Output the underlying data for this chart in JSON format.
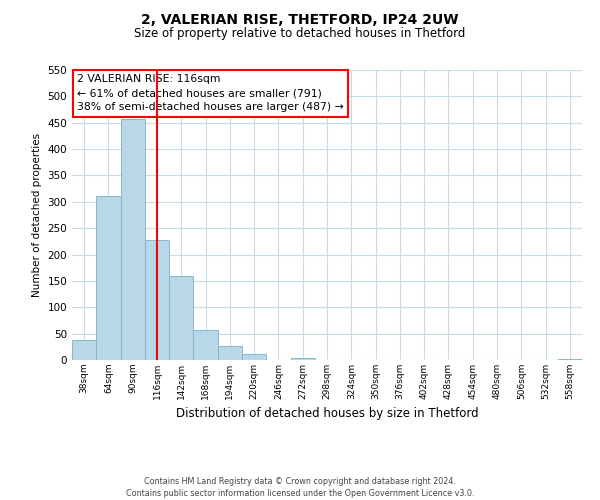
{
  "title": "2, VALERIAN RISE, THETFORD, IP24 2UW",
  "subtitle": "Size of property relative to detached houses in Thetford",
  "xlabel": "Distribution of detached houses by size in Thetford",
  "ylabel": "Number of detached properties",
  "bin_labels": [
    "38sqm",
    "64sqm",
    "90sqm",
    "116sqm",
    "142sqm",
    "168sqm",
    "194sqm",
    "220sqm",
    "246sqm",
    "272sqm",
    "298sqm",
    "324sqm",
    "350sqm",
    "376sqm",
    "402sqm",
    "428sqm",
    "454sqm",
    "480sqm",
    "506sqm",
    "532sqm",
    "558sqm"
  ],
  "bar_values": [
    38,
    311,
    457,
    228,
    160,
    57,
    26,
    12,
    0,
    3,
    0,
    0,
    0,
    0,
    0,
    0,
    0,
    0,
    0,
    0,
    2
  ],
  "bar_color": "#b8d8ea",
  "bar_edge_color": "#7bafc8",
  "property_line_x": 3,
  "ylim": [
    0,
    550
  ],
  "yticks": [
    0,
    50,
    100,
    150,
    200,
    250,
    300,
    350,
    400,
    450,
    500,
    550
  ],
  "annotation_line1": "2 VALERIAN RISE: 116sqm",
  "annotation_line2": "← 61% of detached houses are smaller (791)",
  "annotation_line3": "38% of semi-detached houses are larger (487) →",
  "footer_line1": "Contains HM Land Registry data © Crown copyright and database right 2024.",
  "footer_line2": "Contains public sector information licensed under the Open Government Licence v3.0.",
  "bg_color": "#ffffff",
  "grid_color": "#c8dce8"
}
